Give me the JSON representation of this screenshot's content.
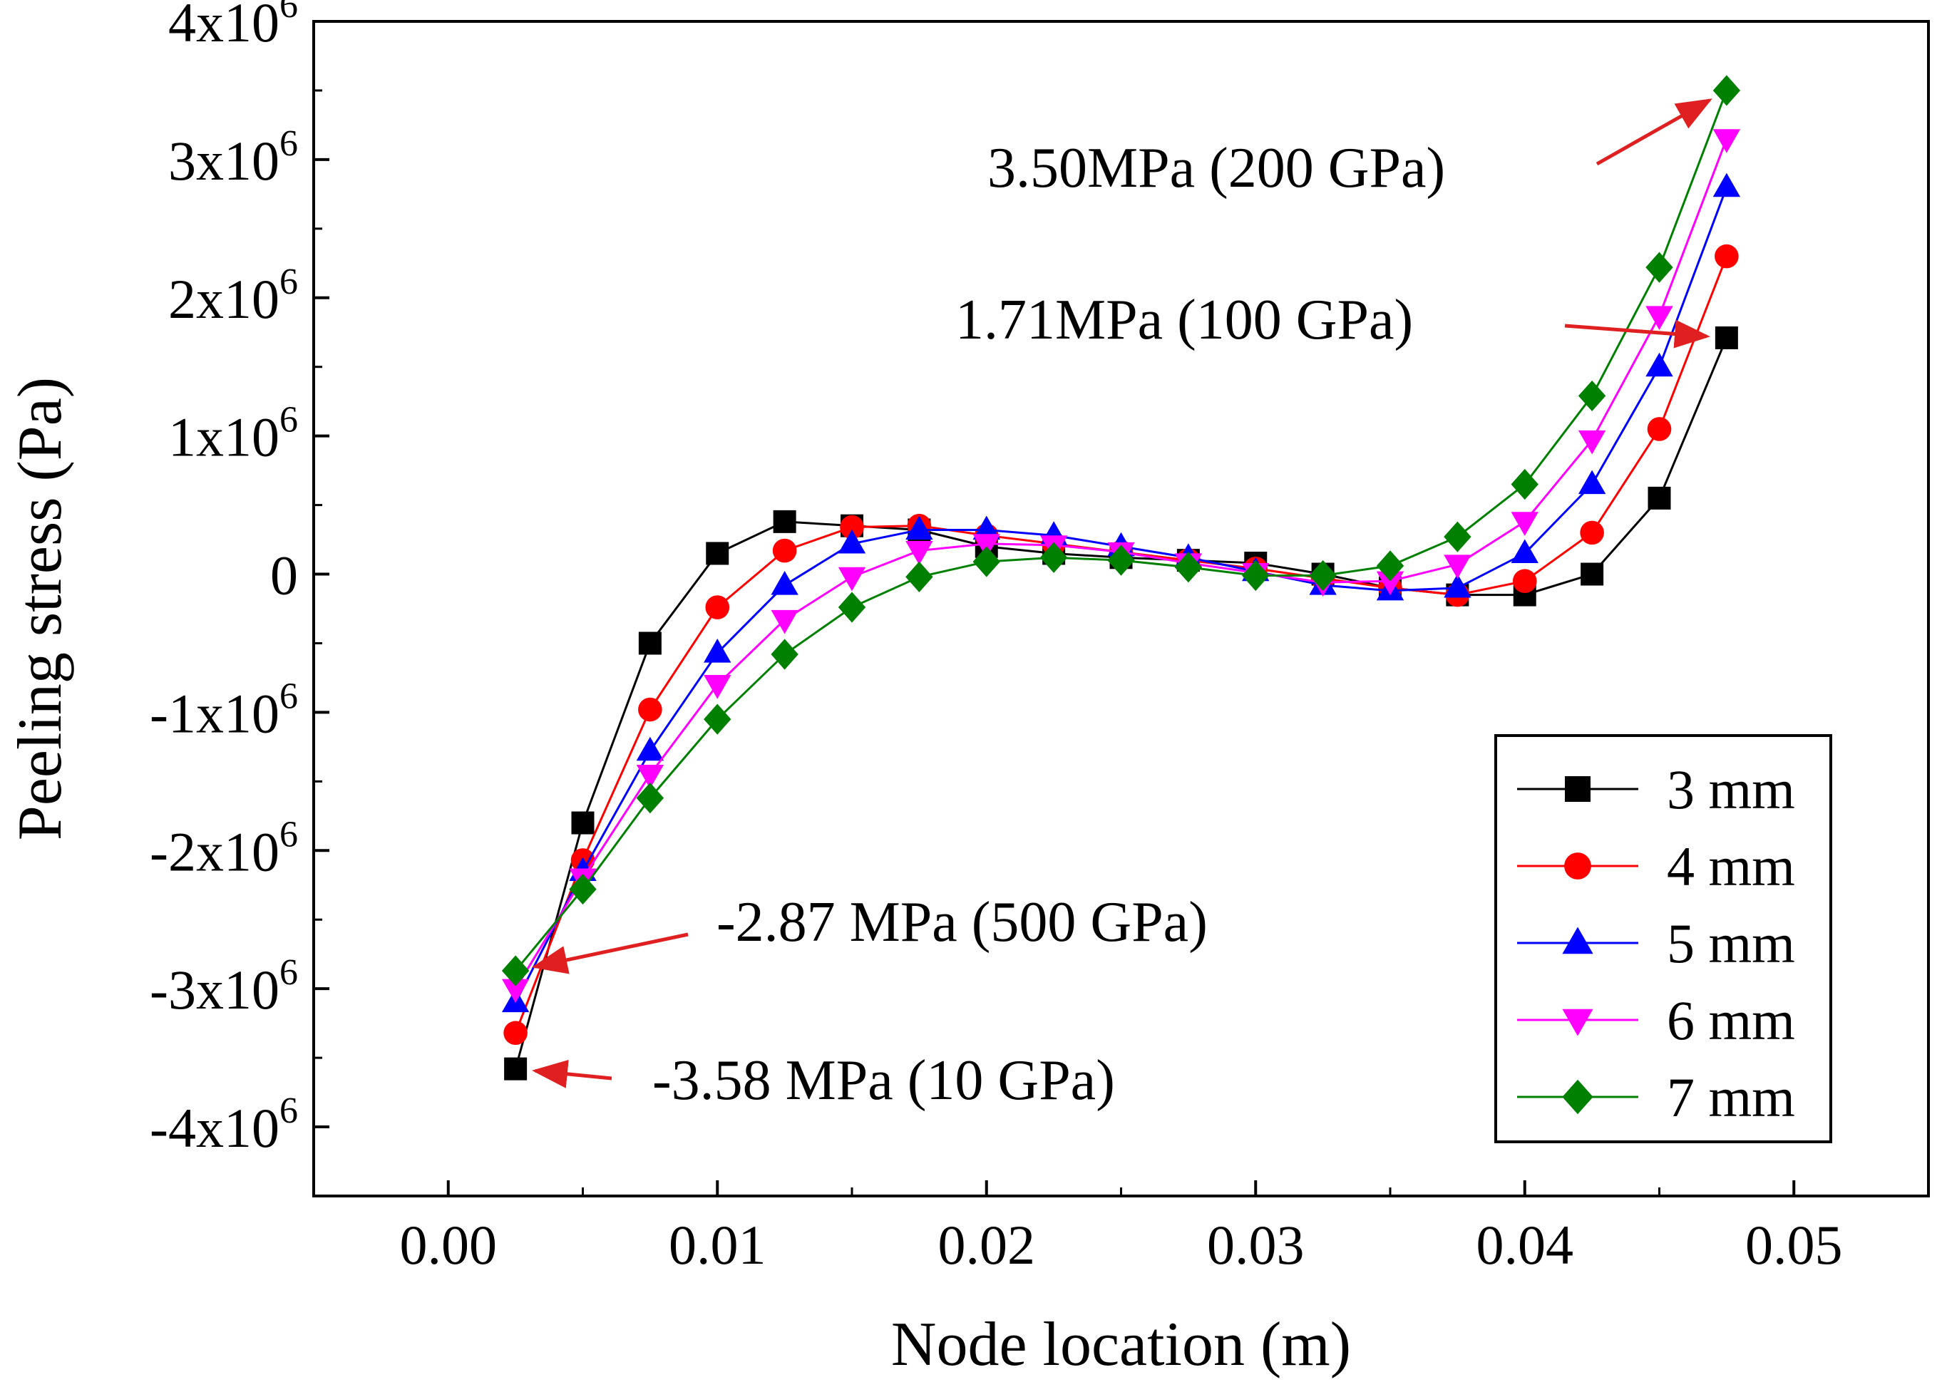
{
  "chart_data": {
    "type": "line",
    "title": "",
    "xlabel": "Node location (m)",
    "ylabel": "Peeling stress (Pa)",
    "xlim": [
      -0.005,
      0.055
    ],
    "ylim": [
      -4.5,
      4.0
    ],
    "y_scale_note": "values in units of 1x10^6 Pa",
    "x_ticks": [
      {
        "value": 0.0,
        "label": "0.00"
      },
      {
        "value": 0.01,
        "label": "0.01"
      },
      {
        "value": 0.02,
        "label": "0.02"
      },
      {
        "value": 0.03,
        "label": "0.03"
      },
      {
        "value": 0.04,
        "label": "0.04"
      },
      {
        "value": 0.05,
        "label": "0.05"
      }
    ],
    "y_ticks": [
      {
        "value": 4,
        "mant": "4x10",
        "exp": "6"
      },
      {
        "value": 3,
        "mant": "3x10",
        "exp": "6"
      },
      {
        "value": 2,
        "mant": "2x10",
        "exp": "6"
      },
      {
        "value": 1,
        "mant": "1x10",
        "exp": "6"
      },
      {
        "value": 0,
        "mant": "0",
        "exp": ""
      },
      {
        "value": -1,
        "mant": "-1x10",
        "exp": "6"
      },
      {
        "value": -2,
        "mant": "-2x10",
        "exp": "6"
      },
      {
        "value": -3,
        "mant": "-3x10",
        "exp": "6"
      },
      {
        "value": -4,
        "mant": "-4x10",
        "exp": "6"
      }
    ],
    "x": [
      0.0025,
      0.005,
      0.0075,
      0.01,
      0.0125,
      0.015,
      0.0175,
      0.02,
      0.0225,
      0.025,
      0.0275,
      0.03,
      0.0325,
      0.035,
      0.0375,
      0.04,
      0.0425,
      0.045,
      0.0475
    ],
    "series": [
      {
        "name": "3 mm",
        "color": "#000000",
        "marker": "square",
        "values": [
          -3.58,
          -1.8,
          -0.5,
          0.15,
          0.38,
          0.35,
          0.32,
          0.2,
          0.15,
          0.12,
          0.1,
          0.08,
          0.0,
          -0.1,
          -0.15,
          -0.15,
          0.0,
          0.55,
          1.71
        ]
      },
      {
        "name": "4 mm",
        "color": "#ff0000",
        "marker": "circle",
        "values": [
          -3.32,
          -2.07,
          -0.98,
          -0.24,
          0.17,
          0.34,
          0.35,
          0.28,
          0.22,
          0.16,
          0.1,
          0.04,
          -0.03,
          -0.1,
          -0.15,
          -0.05,
          0.3,
          1.05,
          2.3
        ]
      },
      {
        "name": "5 mm",
        "color": "#0000ff",
        "marker": "triangle-up",
        "values": [
          -3.1,
          -2.15,
          -1.28,
          -0.57,
          -0.08,
          0.22,
          0.32,
          0.32,
          0.28,
          0.2,
          0.12,
          0.02,
          -0.08,
          -0.12,
          -0.1,
          0.15,
          0.65,
          1.5,
          2.8
        ]
      },
      {
        "name": "6 mm",
        "color": "#ff00ff",
        "marker": "triangle-down",
        "values": [
          -3.0,
          -2.2,
          -1.45,
          -0.8,
          -0.33,
          -0.02,
          0.17,
          0.22,
          0.21,
          0.16,
          0.08,
          0.01,
          -0.06,
          -0.05,
          0.07,
          0.38,
          0.97,
          1.87,
          3.15
        ]
      },
      {
        "name": "7 mm",
        "color": "#008000",
        "marker": "diamond",
        "values": [
          -2.87,
          -2.28,
          -1.62,
          -1.05,
          -0.58,
          -0.24,
          -0.02,
          0.09,
          0.12,
          0.1,
          0.05,
          -0.01,
          -0.01,
          0.06,
          0.27,
          0.65,
          1.29,
          2.22,
          3.5
        ]
      }
    ],
    "annotations": [
      {
        "text": "3.50MPa (200 GPa)",
        "target_x": 0.0475,
        "target_y": 3.5
      },
      {
        "text": "1.71MPa (100 GPa)",
        "target_x": 0.0475,
        "target_y": 1.71
      },
      {
        "text": "-2.87 MPa (500 GPa)",
        "target_x": 0.0025,
        "target_y": -2.87
      },
      {
        "text": "-3.58 MPa (10 GPa)",
        "target_x": 0.0025,
        "target_y": -3.58
      }
    ],
    "legend": {
      "position": "bottom-right",
      "entries": [
        "3 mm",
        "4 mm",
        "5 mm",
        "6 mm",
        "7 mm"
      ]
    },
    "grid": false
  }
}
